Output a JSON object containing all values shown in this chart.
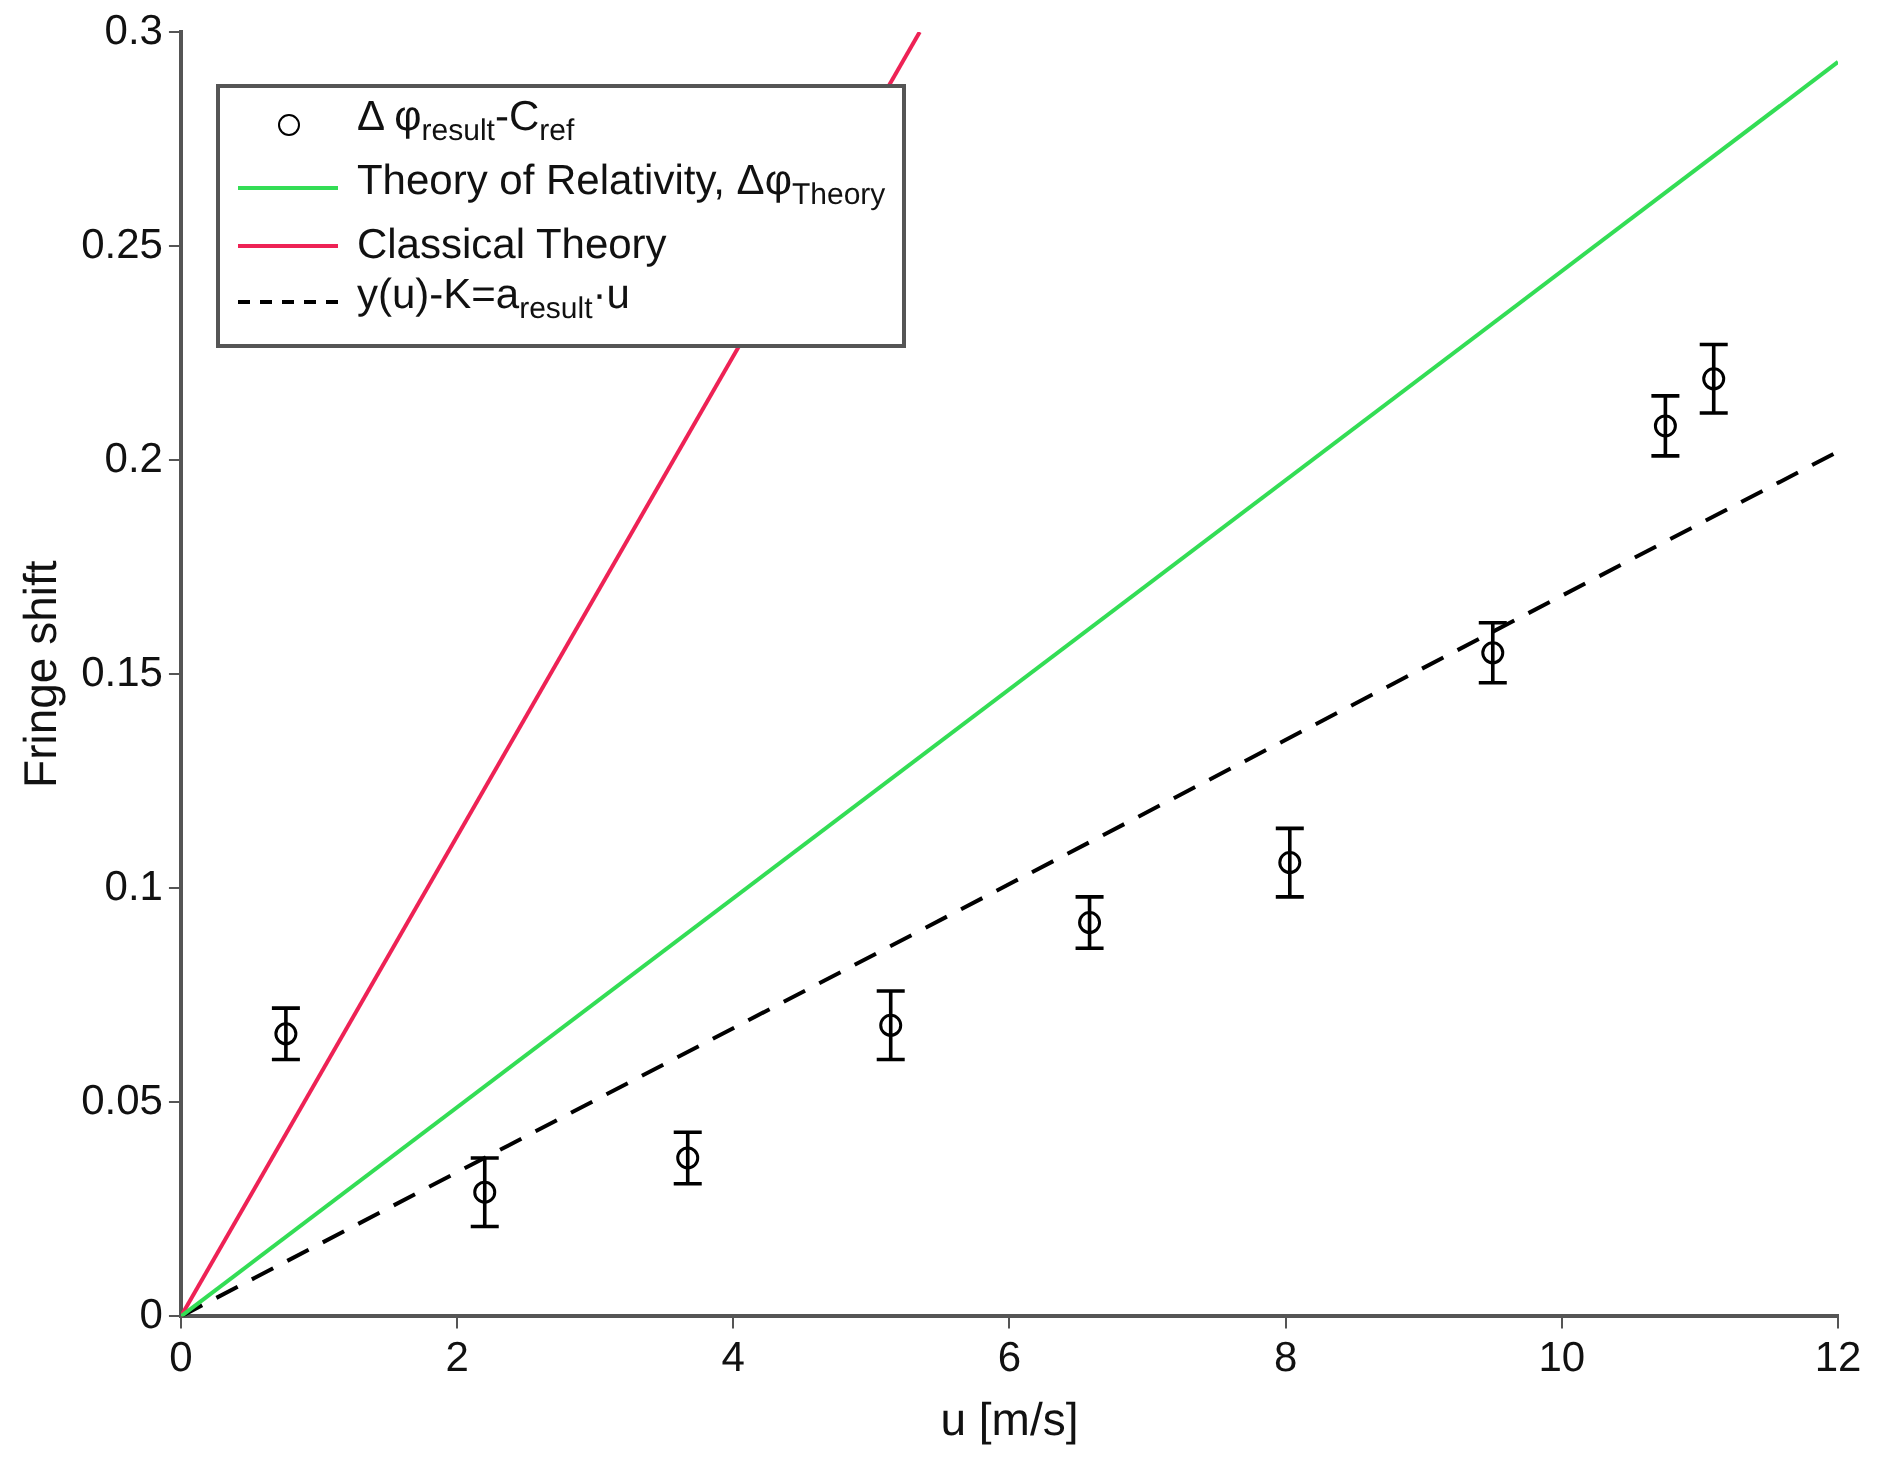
{
  "chart_data": {
    "type": "scatter",
    "xlabel": "u [m/s]",
    "ylabel": "Fringe shift",
    "xlim": [
      0,
      12
    ],
    "xticks": [
      0,
      2,
      4,
      6,
      8,
      10,
      12
    ],
    "ylim": [
      0,
      0.3
    ],
    "yticks": [
      0,
      0.05,
      0.1,
      0.15,
      0.2,
      0.25,
      0.3
    ],
    "grid": false,
    "legend": "top left",
    "series": [
      {
        "name": "Δ φ$_{result}$-C$_{ref}$",
        "color": "#000000",
        "marker": "circle",
        "x": [
          0.76,
          2.2,
          3.67,
          5.14,
          6.58,
          8.03,
          9.5,
          10.75,
          11.1
        ],
        "values": [
          0.066,
          0.029,
          0.037,
          0.068,
          0.092,
          0.106,
          0.155,
          0.208,
          0.219
        ],
        "errors": [
          0.006,
          0.008,
          0.006,
          0.008,
          0.006,
          0.008,
          0.007,
          0.007,
          0.008
        ]
      },
      {
        "type": "line",
        "name": "Theory of Relativity, Δφ$_{Theory}$",
        "color": "#33dd55",
        "marker": "none",
        "line_style": "solid",
        "x": [
          0,
          12
        ],
        "values": [
          0,
          0.293
        ]
      },
      {
        "type": "line",
        "name": "Classical Theory",
        "color": "#ee2255",
        "marker": "none",
        "line_style": "solid",
        "x": [
          0,
          5.35
        ],
        "values": [
          0,
          0.3
        ]
      },
      {
        "type": "line",
        "name": "y(u)-K=a$_{result}$·u",
        "color": "#000000",
        "marker": "none",
        "line_style": "dashed",
        "x": [
          0,
          12
        ],
        "values": [
          0,
          0.202
        ]
      }
    ]
  }
}
